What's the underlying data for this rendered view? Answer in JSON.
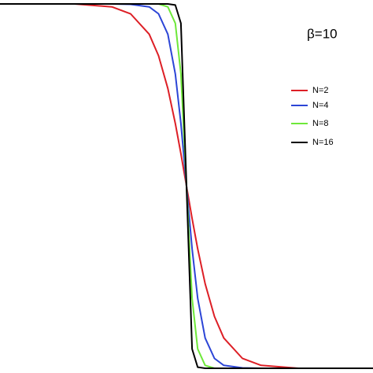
{
  "chart_data": {
    "type": "line",
    "annotation": "β=10",
    "x": [
      -1,
      -0.6,
      -0.4,
      -0.3,
      -0.2,
      -0.15,
      -0.1,
      -0.06,
      -0.03,
      0,
      0.03,
      0.06,
      0.1,
      0.15,
      0.2,
      0.3,
      0.4,
      0.6,
      1
    ],
    "xlim": [
      -1,
      1
    ],
    "ylim": [
      0,
      1
    ],
    "legend": "right",
    "series": [
      {
        "name": "N=2",
        "color": "#dd1f26",
        "values": [
          1,
          1,
          0.992,
          0.973,
          0.917,
          0.858,
          0.768,
          0.672,
          0.589,
          0.5,
          0.411,
          0.328,
          0.232,
          0.142,
          0.083,
          0.027,
          0.008,
          0,
          0
        ]
      },
      {
        "name": "N=4",
        "color": "#2c45d6",
        "values": [
          1,
          1,
          1,
          0.999,
          0.992,
          0.973,
          0.917,
          0.808,
          0.672,
          0.5,
          0.328,
          0.192,
          0.083,
          0.027,
          0.008,
          0.001,
          0,
          0,
          0
        ]
      },
      {
        "name": "N=8",
        "color": "#6ee83a",
        "values": [
          1,
          1,
          1,
          1,
          1,
          1,
          0.992,
          0.947,
          0.808,
          0.5,
          0.192,
          0.053,
          0.008,
          0,
          0,
          0,
          0,
          0,
          0
        ]
      },
      {
        "name": "N=16",
        "color": "#000000",
        "values": [
          1,
          1,
          1,
          1,
          1,
          1,
          1,
          0.997,
          0.947,
          0.5,
          0.053,
          0.003,
          0,
          0,
          0,
          0,
          0,
          0,
          0
        ]
      }
    ]
  }
}
